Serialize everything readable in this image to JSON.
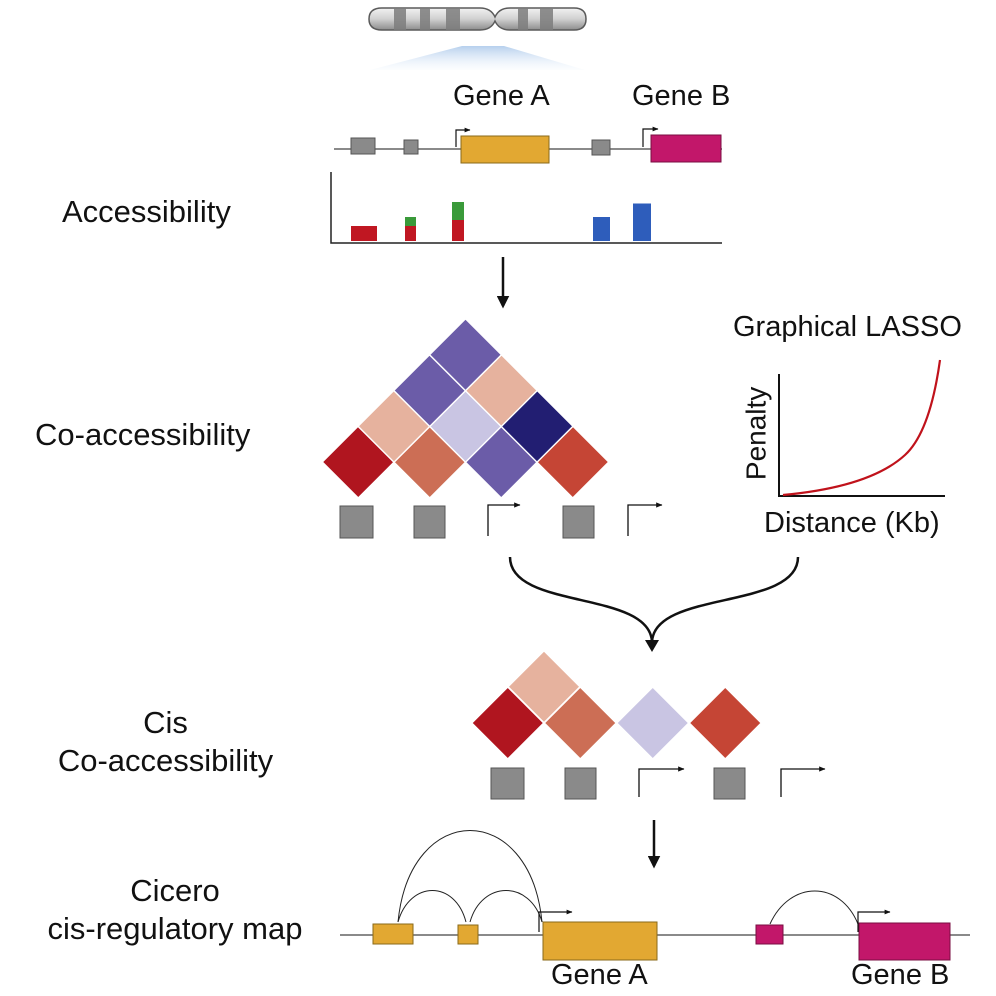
{
  "colors": {
    "gray": "#8a8a8a",
    "gene_a": "#e2a832",
    "gene_b": "#c2176a",
    "peak_red": "#c01722",
    "peak_green": "#3a9a3a",
    "peak_blue": "#2e5dbb",
    "red_strong": "#b0151f",
    "red_medium": "#cc6e55",
    "red_orange": "#c54535",
    "peach": "#e6b29e",
    "purple_medium": "#6b5ca8",
    "lavender": "#c9c5e3",
    "navy": "#221e72",
    "curve_red": "#c0121b"
  },
  "labels": {
    "gene_a_top": "Gene A",
    "gene_b_top": "Gene B",
    "accessibility": "Accessibility",
    "co_accessibility": "Co-accessibility",
    "graphical_lasso": "Graphical LASSO",
    "penalty": "Penalty",
    "distance": "Distance (Kb)",
    "cis_line1": "Cis",
    "cis_line2": "Co-accessibility",
    "cicero_line1": "Cicero",
    "cicero_line2": "cis-regulatory map",
    "gene_a_bottom": "Gene A",
    "gene_b_bottom": "Gene B"
  },
  "accessibility_peaks": [
    {
      "site": "region-1",
      "segments": [
        {
          "color": "peak_red",
          "value": 1.0
        }
      ]
    },
    {
      "site": "region-2",
      "segments": [
        {
          "color": "peak_red",
          "value": 1.0
        },
        {
          "color": "peak_green",
          "value": 0.6
        }
      ]
    },
    {
      "site": "gene-a-promoter",
      "segments": [
        {
          "color": "peak_red",
          "value": 1.4
        },
        {
          "color": "peak_green",
          "value": 1.2
        }
      ]
    },
    {
      "site": "region-3",
      "segments": [
        {
          "color": "peak_blue",
          "value": 1.6
        }
      ]
    },
    {
      "site": "gene-b-promoter",
      "segments": [
        {
          "color": "peak_blue",
          "value": 2.5
        }
      ]
    }
  ],
  "co_accessibility_matrix": {
    "sites": [
      "region-1",
      "region-2",
      "gene-a-promoter",
      "region-3",
      "gene-b-promoter"
    ],
    "cells": [
      {
        "pair": [
          1,
          2
        ],
        "color": "red_strong"
      },
      {
        "pair": [
          2,
          3
        ],
        "color": "red_medium"
      },
      {
        "pair": [
          3,
          4
        ],
        "color": "purple_medium"
      },
      {
        "pair": [
          4,
          5
        ],
        "color": "red_orange"
      },
      {
        "pair": [
          1,
          3
        ],
        "color": "peach"
      },
      {
        "pair": [
          2,
          4
        ],
        "color": "lavender"
      },
      {
        "pair": [
          3,
          5
        ],
        "color": "navy"
      },
      {
        "pair": [
          1,
          4
        ],
        "color": "purple_medium"
      },
      {
        "pair": [
          2,
          5
        ],
        "color": "peach"
      },
      {
        "pair": [
          1,
          5
        ],
        "color": "purple_medium"
      }
    ]
  },
  "cis_co_accessibility": {
    "cells": [
      {
        "pair": [
          1,
          2
        ],
        "color": "red_strong"
      },
      {
        "pair": [
          2,
          3
        ],
        "color": "red_medium"
      },
      {
        "pair": [
          3,
          4
        ],
        "color": "lavender"
      },
      {
        "pair": [
          4,
          5
        ],
        "color": "red_orange"
      },
      {
        "pair": [
          1,
          3
        ],
        "color": "peach"
      }
    ]
  },
  "lasso_penalty_curve": {
    "x_label": "Distance (Kb)",
    "y_label": "Penalty",
    "shape": "increasing-convex"
  },
  "cicero_links": [
    {
      "from": "region-1",
      "to": "gene-a-promoter"
    },
    {
      "from": "region-1",
      "to": "region-2"
    },
    {
      "from": "region-2",
      "to": "gene-a-promoter"
    },
    {
      "from": "region-3",
      "to": "gene-b-promoter"
    }
  ]
}
